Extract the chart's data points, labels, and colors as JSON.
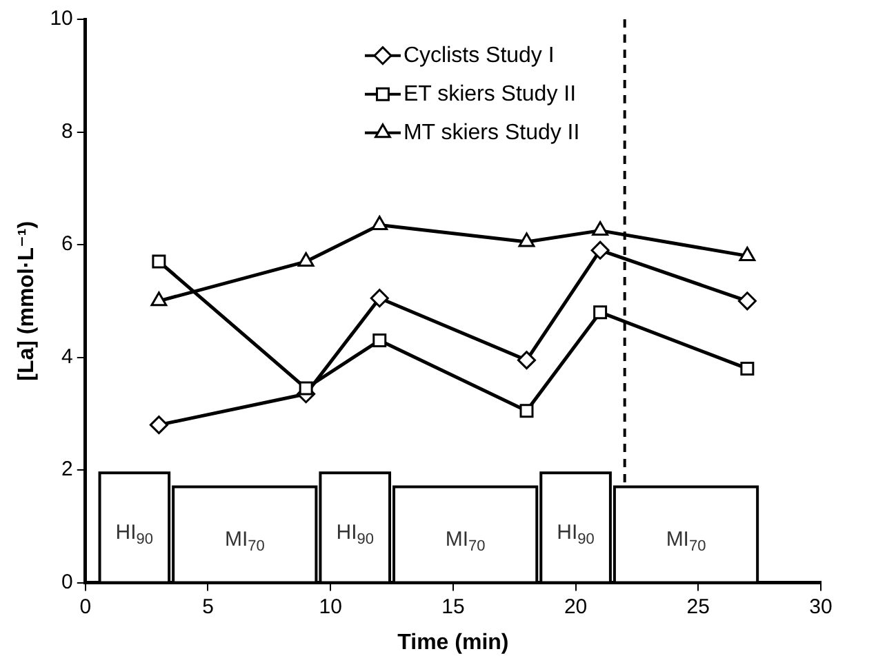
{
  "chart_data": {
    "type": "line",
    "xlabel": "Time (min)",
    "ylabel": "[La] (mmol·L⁻¹)",
    "xlim": [
      0,
      30
    ],
    "xticks": [
      0,
      5,
      10,
      15,
      20,
      25,
      30
    ],
    "ylim": [
      0,
      10
    ],
    "yticks": [
      0,
      2,
      4,
      6,
      8,
      10
    ],
    "grid": false,
    "legend": "top",
    "line_style": "solid",
    "series": [
      {
        "name": "Cyclists Study I",
        "color": "#000000",
        "marker": "diamond",
        "x": [
          3,
          9,
          12,
          18,
          21,
          27
        ],
        "values": [
          2.8,
          3.35,
          5.05,
          3.95,
          5.9,
          5.0
        ]
      },
      {
        "name": "ET skiers Study II",
        "color": "#000000",
        "marker": "square",
        "x": [
          3,
          9,
          12,
          18,
          21,
          27
        ],
        "values": [
          5.7,
          3.45,
          4.3,
          3.05,
          4.8,
          3.8
        ]
      },
      {
        "name": "MT skiers Study II",
        "color": "#000000",
        "marker": "triangle",
        "x": [
          3,
          9,
          12,
          18,
          21,
          27
        ],
        "values": [
          5.0,
          5.7,
          6.35,
          6.05,
          6.25,
          5.8
        ]
      },
      {
        "type": "histogram",
        "color": "#000000",
        "bins": [
          0.5,
          3.5,
          9.5,
          12.5,
          18.5,
          21.5,
          27.5
        ],
        "values": [
          1.95,
          1.7,
          1.95,
          1.7,
          1.95,
          1.7
        ]
      }
    ],
    "annotations": [
      "HI$_{90}$",
      "MI$_{70}$",
      "HI$_{90}$",
      "MI$_{70}$",
      "HI$_{90}$",
      "MI$_{70}$"
    ],
    "ref_lines": [
      {
        "axis": "x",
        "value": 22,
        "line_style": "dashed",
        "color": "#000000"
      }
    ]
  }
}
